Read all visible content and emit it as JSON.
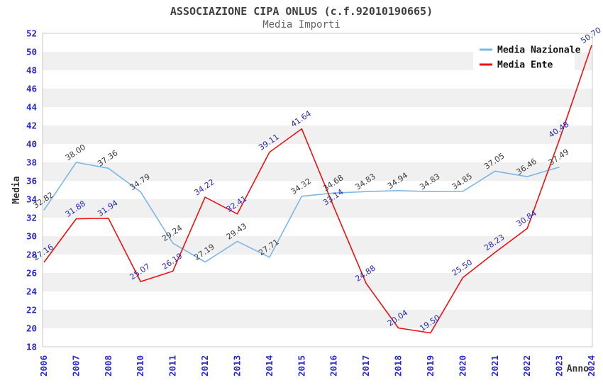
{
  "chart_data": {
    "type": "line",
    "title": "ASSOCIAZIONE CIPA ONLUS (c.f.92010190665)",
    "subtitle": "Media Importi",
    "xlabel": "Anno",
    "ylabel": "Media",
    "ylim": [
      18,
      52
    ],
    "ytick_step": 2,
    "grid": "alternating-horizontal-bands",
    "band_colors": [
      "#ffffff",
      "#f0f0f0"
    ],
    "plot_border_color": "#c8c8c8",
    "tick_label_color": "#2828cc",
    "axis_title_color": "#333333",
    "legend_position": "top-right",
    "legend_text_color": "#111111",
    "categories": [
      "2006",
      "2007",
      "2008",
      "2010",
      "2011",
      "2012",
      "2013",
      "2014",
      "2015",
      "2016",
      "2017",
      "2018",
      "2019",
      "2020",
      "2021",
      "2022",
      "2023",
      "2024"
    ],
    "series": [
      {
        "name": "Media Nazionale",
        "color": "#7db7e8",
        "label_color": "#3c3c3c",
        "values": [
          32.82,
          38.0,
          37.36,
          34.79,
          29.24,
          27.19,
          29.43,
          27.71,
          34.32,
          34.68,
          34.83,
          34.94,
          34.83,
          34.85,
          37.05,
          36.46,
          37.49,
          null
        ]
      },
      {
        "name": "Media Ente",
        "color": "#ee1111",
        "label_color": "#2929ac",
        "values": [
          27.16,
          31.88,
          31.94,
          25.07,
          26.19,
          34.22,
          32.41,
          39.11,
          41.64,
          33.14,
          24.88,
          20.04,
          19.5,
          25.5,
          28.23,
          30.84,
          40.48,
          50.7
        ]
      }
    ]
  }
}
